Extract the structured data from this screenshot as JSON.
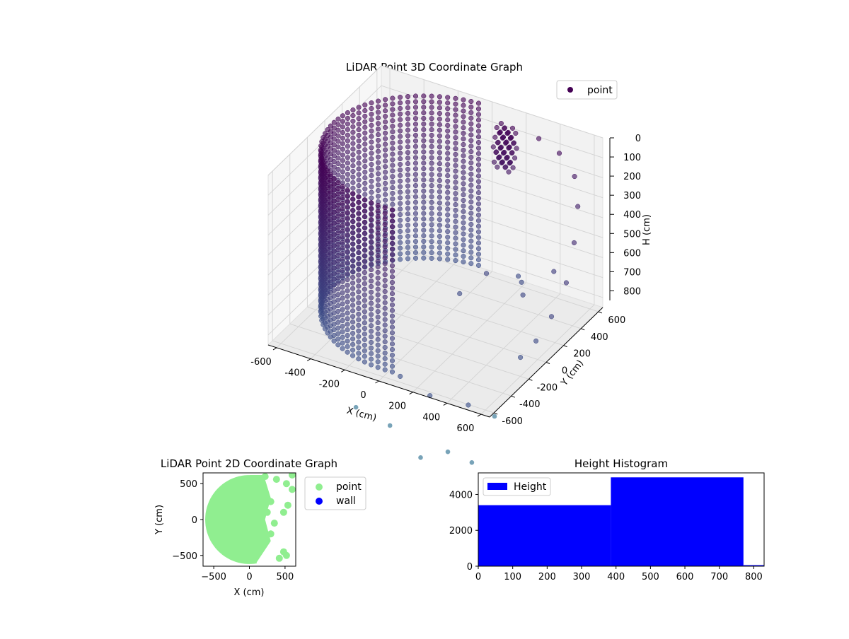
{
  "chart_data": [
    {
      "type": "scatter3d",
      "title": "LiDAR Point 3D Coordinate Graph",
      "xlabel": "X (cm)",
      "ylabel": "Y (cm)",
      "zlabel": "H (cm)",
      "xlim": [
        -650,
        650
      ],
      "ylim": [
        -650,
        650
      ],
      "zlim": [
        0,
        850
      ],
      "z_inverted": true,
      "xticks": [
        -600,
        -400,
        -200,
        0,
        200,
        400,
        600
      ],
      "yticks": [
        -600,
        -400,
        -200,
        0,
        200,
        400,
        600
      ],
      "zticks": [
        0,
        100,
        200,
        300,
        400,
        500,
        600,
        700,
        800
      ],
      "legend": {
        "placement": "top-right",
        "entries": [
          {
            "label": "point",
            "color": "#440154"
          }
        ]
      },
      "colormap": "viridis",
      "grid": true,
      "description_of_series": {
        "wall_arc": {
          "r": 600,
          "theta_deg": [
            95,
            275
          ],
          "h_range": [
            0,
            830
          ]
        },
        "outlier_samples": [
          {
            "x": 300,
            "y": 600,
            "h": 80
          },
          {
            "x": 420,
            "y": 600,
            "h": 120
          },
          {
            "x": 520,
            "y": 580,
            "h": 200
          },
          {
            "x": 580,
            "y": 500,
            "h": 300
          },
          {
            "x": 620,
            "y": 380,
            "h": 420
          },
          {
            "x": 640,
            "y": 250,
            "h": 560
          },
          {
            "x": 620,
            "y": 120,
            "h": 680
          },
          {
            "x": 590,
            "y": 0,
            "h": 760
          },
          {
            "x": 560,
            "y": -120,
            "h": 800
          },
          {
            "x": 480,
            "y": 420,
            "h": 620
          },
          {
            "x": 360,
            "y": 300,
            "h": 720
          },
          {
            "x": 260,
            "y": 480,
            "h": 760
          },
          {
            "x": 100,
            "y": -600,
            "h": 820
          },
          {
            "x": 300,
            "y": -650,
            "h": 840
          },
          {
            "x": 520,
            "y": -640,
            "h": 830
          },
          {
            "x": 200,
            "y": 560,
            "h": 780
          },
          {
            "x": 40,
            "y": 200,
            "h": 760
          },
          {
            "x": 120,
            "y": 350,
            "h": 700
          }
        ]
      }
    },
    {
      "type": "scatter",
      "title": "LiDAR Point 2D Coordinate Graph",
      "xlabel": "X (cm)",
      "ylabel": "Y (cm)",
      "xlim": [
        -650,
        650
      ],
      "ylim": [
        -650,
        650
      ],
      "xticks": [
        -500,
        0,
        500
      ],
      "yticks": [
        -500,
        0,
        500
      ],
      "legend": {
        "placement": "outside-right",
        "entries": [
          {
            "label": "point",
            "color": "#90ee90"
          },
          {
            "label": "wall",
            "color": "#0000ff"
          }
        ]
      },
      "series": [
        {
          "name": "point",
          "color": "#90ee90",
          "disk": {
            "cx": 0,
            "cy": 0,
            "r": 620,
            "theta_deg": [
              80,
              280
            ]
          }
        },
        {
          "name": "wall",
          "color": "#0000ff",
          "values": []
        }
      ],
      "extra_points": [
        {
          "x": 220,
          "y": 600
        },
        {
          "x": 380,
          "y": 560
        },
        {
          "x": 520,
          "y": 500
        },
        {
          "x": 600,
          "y": 420
        },
        {
          "x": 540,
          "y": 200
        },
        {
          "x": 480,
          "y": 100
        },
        {
          "x": 300,
          "y": 250
        },
        {
          "x": 250,
          "y": 100
        },
        {
          "x": 350,
          "y": -50
        },
        {
          "x": 300,
          "y": -200
        },
        {
          "x": 480,
          "y": -450
        },
        {
          "x": 520,
          "y": -500
        },
        {
          "x": 420,
          "y": -540
        },
        {
          "x": 600,
          "y": 620
        }
      ]
    },
    {
      "type": "histogram",
      "title": "Height Histogram",
      "xlim": [
        0,
        830
      ],
      "ylim": [
        0,
        5200
      ],
      "xticks": [
        0,
        100,
        200,
        300,
        400,
        500,
        600,
        700,
        800
      ],
      "yticks": [
        0,
        2000,
        4000
      ],
      "legend": {
        "placement": "top-left",
        "entries": [
          {
            "label": "Height",
            "color": "#0000ff"
          }
        ]
      },
      "bins": [
        {
          "start": 0,
          "end": 385,
          "count": 3400
        },
        {
          "start": 385,
          "end": 770,
          "count": 4950
        },
        {
          "start": 770,
          "end": 1155,
          "count": 60
        }
      ],
      "color": "#0000ff"
    }
  ]
}
